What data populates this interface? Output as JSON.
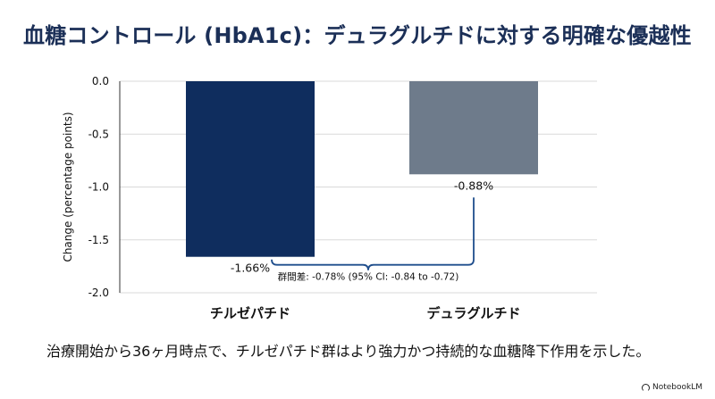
{
  "chart_data": {
    "type": "bar",
    "title": "血糖コントロール (HbA1c)：デュラグルチドに対する明確な優越性",
    "ylabel": "Change (percentage points)",
    "xlabel": "",
    "ylim": [
      -2.0,
      0.0
    ],
    "yticks": [
      "0.0",
      "-0.5",
      "-1.0",
      "-1.5",
      "-2.0"
    ],
    "ytick_values": [
      0.0,
      -0.5,
      -1.0,
      -1.5,
      -2.0
    ],
    "categories": [
      "チルゼパチド",
      "デュラグルチド"
    ],
    "values": [
      -1.66,
      -0.88
    ],
    "value_labels": [
      "-1.66%",
      "-0.88%"
    ],
    "bar_colors": [
      "#0f2d5e",
      "#6e7b8b"
    ],
    "grid": true,
    "annotation": "群間差: -0.78% (95% CI: -0.84 to -0.72)"
  },
  "caption": "治療開始から36ヶ月時点で、チルゼパチド群はより強力かつ持続的な血糖降下作用を示した。",
  "brand": "NotebookLM"
}
